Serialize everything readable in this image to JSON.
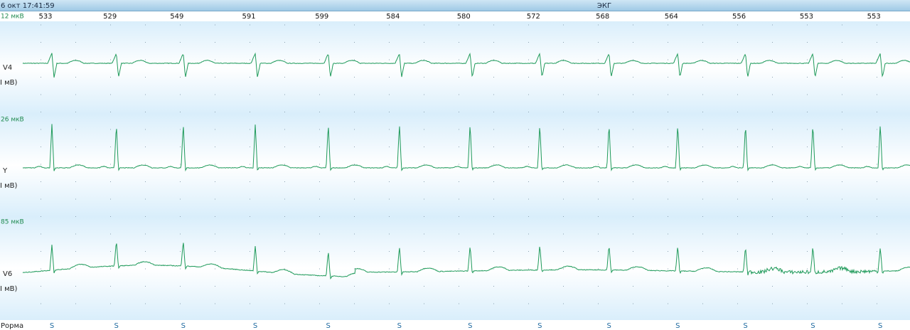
{
  "header": {
    "datetime": "6 окт 17:41:59",
    "title": "ЭКГ"
  },
  "rr_intervals": [
    533,
    529,
    549,
    591,
    599,
    584,
    580,
    572,
    568,
    564,
    556,
    553,
    553
  ],
  "leads": [
    {
      "scale": "12 мкВ",
      "name": "V4",
      "unit": "I мВ)"
    },
    {
      "scale": "26 мкВ",
      "name": "Y",
      "unit": "I мВ)"
    },
    {
      "scale": "85 мкВ",
      "name": "V6",
      "unit": "I мВ)"
    }
  ],
  "footer": {
    "label": "Рорма",
    "beat_labels": [
      "S",
      "S",
      "S",
      "S",
      "S",
      "S",
      "S",
      "S",
      "S",
      "S",
      "S",
      "S",
      "S"
    ]
  }
}
